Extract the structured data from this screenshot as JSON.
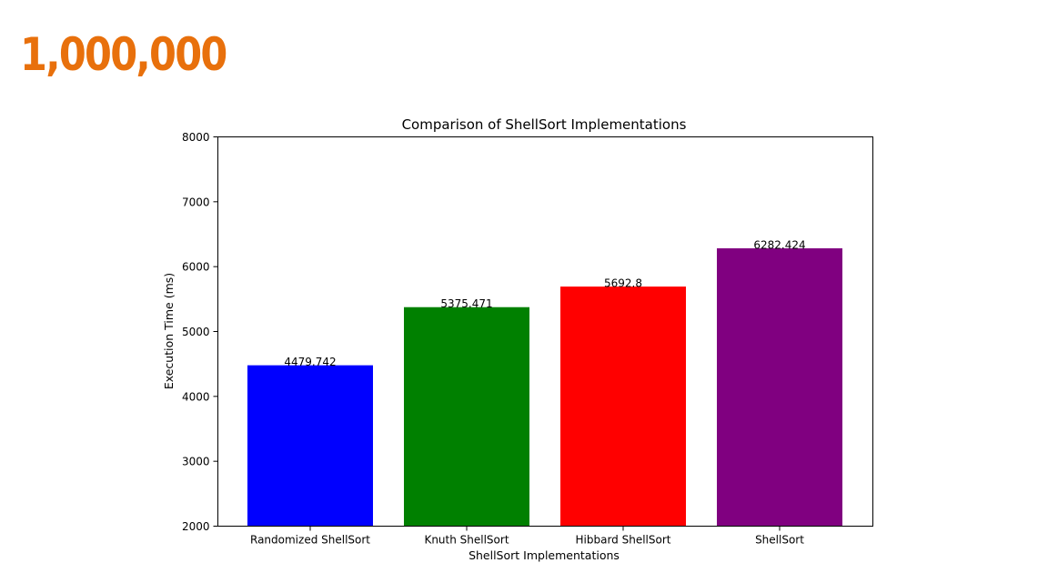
{
  "heading": {
    "text": "1,000,000",
    "color": "#e8700c"
  },
  "chart_data": {
    "type": "bar",
    "title": "Comparison of ShellSort Implementations",
    "xlabel": "ShellSort Implementations",
    "ylabel": "Execution Time (ms)",
    "categories": [
      "Randomized ShellSort",
      "Knuth ShellSort",
      "Hibbard ShellSort",
      "ShellSort"
    ],
    "values": [
      4479.742,
      5375.471,
      5692.8,
      6282.424
    ],
    "value_labels": [
      "4479.742",
      "5375.471",
      "5692.8",
      "6282.424"
    ],
    "colors": [
      "#0000ff",
      "#008000",
      "#ff0000",
      "#800080"
    ],
    "ylim": [
      2000,
      8000
    ],
    "yticks": [
      2000,
      3000,
      4000,
      5000,
      6000,
      7000,
      8000
    ],
    "grid": false,
    "legend": "none"
  }
}
